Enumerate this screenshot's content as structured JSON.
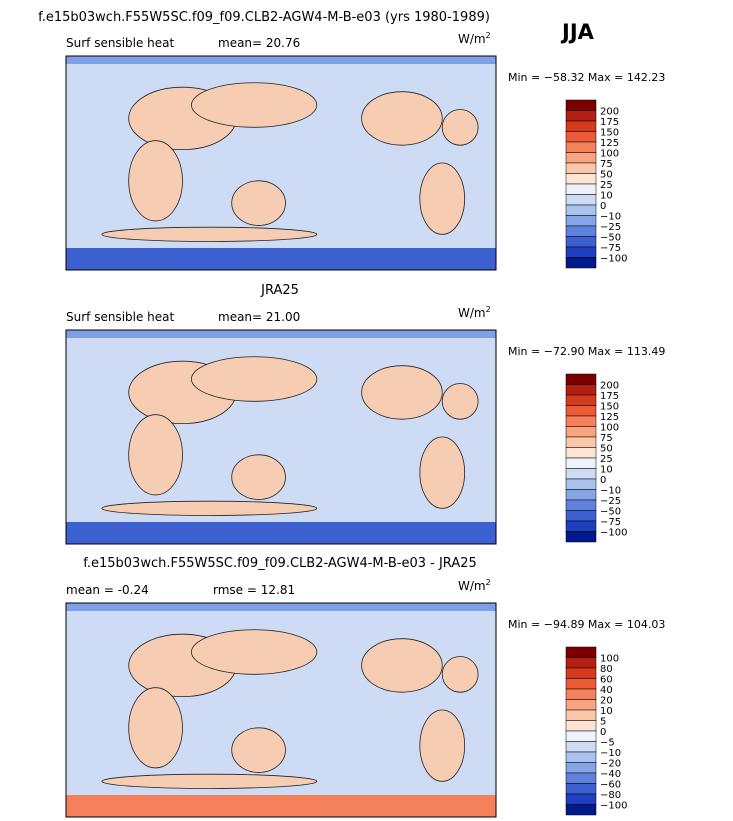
{
  "header": {
    "title": "f.e15b03wch.F55W5SC.f09_f09.CLB2-AGW4-M-B-e03 (yrs 1980-1989)",
    "season": "JJA"
  },
  "panels": [
    {
      "title": null,
      "left_label": "Surf sensible heat",
      "mid_label": "mean=  20.76",
      "units": "W/m",
      "units_sup": "2",
      "minmax": "Min = −58.32 Max = 142.23",
      "levels": [
        "200",
        "175",
        "150",
        "125",
        "100",
        "75",
        "50",
        "25",
        "10",
        "0",
        "−10",
        "−25",
        "−50",
        "−75",
        "−100"
      ],
      "colors": [
        "#7a0000",
        "#b31f10",
        "#d63a1e",
        "#ec5a36",
        "#f5805c",
        "#f9a381",
        "#fcc6a9",
        "#fde4d4",
        "#eef3fb",
        "#cddcf4",
        "#aac3ee",
        "#86a5e6",
        "#5f82dc",
        "#3c60d0",
        "#1d3fc0",
        "#001a8c"
      ]
    },
    {
      "title": "JRA25",
      "left_label": "Surf sensible heat",
      "mid_label": "mean=  21.00",
      "units": "W/m",
      "units_sup": "2",
      "minmax": "Min = −72.90 Max = 113.49",
      "levels": [
        "200",
        "175",
        "150",
        "125",
        "100",
        "75",
        "50",
        "25",
        "10",
        "0",
        "−10",
        "−25",
        "−50",
        "−75",
        "−100"
      ],
      "colors": [
        "#7a0000",
        "#b31f10",
        "#d63a1e",
        "#ec5a36",
        "#f5805c",
        "#f9a381",
        "#fcc6a9",
        "#fde4d4",
        "#eef3fb",
        "#cddcf4",
        "#aac3ee",
        "#86a5e6",
        "#5f82dc",
        "#3c60d0",
        "#1d3fc0",
        "#001a8c"
      ]
    },
    {
      "title": "f.e15b03wch.F55W5SC.f09_f09.CLB2-AGW4-M-B-e03 - JRA25",
      "left_label": "mean =   -0.24",
      "mid_label": "rmse =   12.81",
      "units": "W/m",
      "units_sup": "2",
      "minmax": "Min = −94.89 Max = 104.03",
      "levels": [
        "100",
        "80",
        "60",
        "40",
        "20",
        "10",
        "5",
        "0",
        "−5",
        "−10",
        "−20",
        "−40",
        "−60",
        "−80",
        "−100"
      ],
      "colors": [
        "#7a0000",
        "#b31f10",
        "#d63a1e",
        "#ec5a36",
        "#f5805c",
        "#f9a381",
        "#fcc6a9",
        "#fde4d4",
        "#eef3fb",
        "#cddcf4",
        "#aac3ee",
        "#86a5e6",
        "#5f82dc",
        "#3c60d0",
        "#1d3fc0",
        "#001a8c"
      ]
    }
  ]
}
